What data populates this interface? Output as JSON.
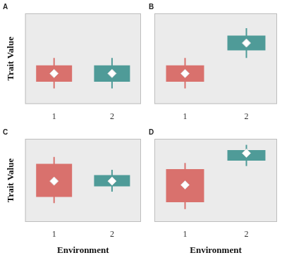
{
  "chart_data": [
    {
      "type": "box",
      "title": "A",
      "y_label": "Trait Value",
      "categories": [
        "1",
        "2"
      ],
      "colors": [
        "#d9716d",
        "#4f9b98"
      ],
      "marker": "diamond",
      "ylim": [
        0,
        11
      ],
      "tick_labels": "x",
      "grid": false,
      "boxes": [
        {
          "low": 1.9,
          "q1": 2.7,
          "q3": 4.7,
          "high": 5.6,
          "mean": 3.7
        },
        {
          "low": 1.9,
          "q1": 2.7,
          "q3": 4.7,
          "high": 5.6,
          "mean": 3.7
        }
      ]
    },
    {
      "type": "box",
      "title": "B",
      "categories": [
        "1",
        "2"
      ],
      "colors": [
        "#d9716d",
        "#4f9b98"
      ],
      "marker": "diamond",
      "ylim": [
        0,
        11
      ],
      "tick_labels": "x",
      "grid": false,
      "boxes": [
        {
          "low": 1.9,
          "q1": 2.7,
          "q3": 4.7,
          "high": 5.6,
          "mean": 3.7
        },
        {
          "low": 5.6,
          "q1": 6.5,
          "q3": 8.3,
          "high": 9.2,
          "mean": 7.4
        }
      ]
    },
    {
      "type": "box",
      "title": "C",
      "y_label": "Trait Value",
      "x_label": "Environment",
      "categories": [
        "1",
        "2"
      ],
      "colors": [
        "#d9716d",
        "#4f9b98"
      ],
      "marker": "diamond",
      "ylim": [
        0,
        11
      ],
      "tick_labels": "x",
      "grid": false,
      "boxes": [
        {
          "low": 2.5,
          "q1": 3.3,
          "q3": 7.7,
          "high": 8.6,
          "mean": 5.4
        },
        {
          "low": 4.0,
          "q1": 4.7,
          "q3": 6.2,
          "high": 6.9,
          "mean": 5.4
        }
      ]
    },
    {
      "type": "box",
      "title": "D",
      "x_label": "Environment",
      "categories": [
        "1",
        "2"
      ],
      "colors": [
        "#d9716d",
        "#4f9b98"
      ],
      "marker": "diamond",
      "ylim": [
        0,
        11
      ],
      "tick_labels": "x",
      "grid": false,
      "boxes": [
        {
          "low": 1.7,
          "q1": 2.6,
          "q3": 7.0,
          "high": 7.8,
          "mean": 4.9
        },
        {
          "low": 7.4,
          "q1": 8.1,
          "q3": 9.5,
          "high": 10.2,
          "mean": 9.1
        }
      ]
    }
  ]
}
